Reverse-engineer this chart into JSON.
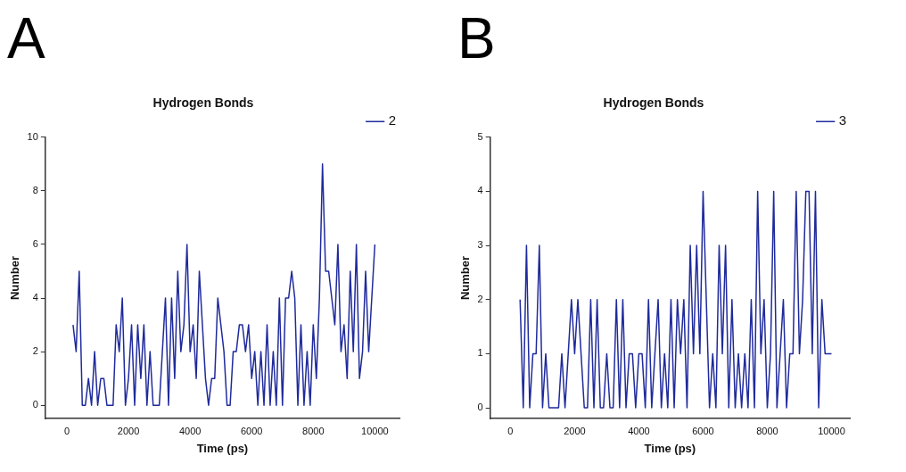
{
  "chart_data": [
    {
      "type": "line",
      "annotations": [
        "A"
      ],
      "title": "Hydrogen Bonds",
      "xlabel": "Time (ps)",
      "ylabel": "Number",
      "xlim": [
        -700,
        10800
      ],
      "xticks": [
        0,
        2000,
        4000,
        6000,
        8000,
        10000
      ],
      "ylim": [
        -0.5,
        10
      ],
      "yticks": [
        0,
        2,
        4,
        6,
        8,
        10
      ],
      "grid": false,
      "legend": "top right",
      "marker": "none",
      "x": [
        200,
        300,
        400,
        500,
        600,
        700,
        800,
        900,
        1000,
        1100,
        1200,
        1300,
        1400,
        1500,
        1600,
        1700,
        1800,
        1900,
        2000,
        2100,
        2200,
        2300,
        2400,
        2500,
        2600,
        2700,
        2800,
        2900,
        3000,
        3100,
        3200,
        3300,
        3400,
        3500,
        3600,
        3700,
        3800,
        3900,
        4000,
        4100,
        4200,
        4300,
        4400,
        4500,
        4600,
        4700,
        4800,
        4900,
        5000,
        5100,
        5200,
        5300,
        5400,
        5500,
        5600,
        5700,
        5800,
        5900,
        6000,
        6100,
        6200,
        6300,
        6400,
        6500,
        6600,
        6700,
        6800,
        6900,
        7000,
        7100,
        7200,
        7300,
        7400,
        7500,
        7600,
        7700,
        7800,
        7900,
        8000,
        8100,
        8200,
        8300,
        8400,
        8500,
        8600,
        8700,
        8800,
        8900,
        9000,
        9100,
        9200,
        9300,
        9400,
        9500,
        9600,
        9700,
        9800,
        9900,
        10000
      ],
      "series": [
        {
          "name": "2",
          "color": "#1f2a9c",
          "values": [
            3,
            2,
            5,
            0,
            0,
            1,
            0,
            2,
            0,
            1,
            1,
            0,
            0,
            0,
            3,
            2,
            4,
            0,
            1,
            3,
            0,
            3,
            1,
            3,
            0,
            2,
            0,
            0,
            0,
            2,
            4,
            0,
            4,
            1,
            5,
            2,
            3,
            6,
            2,
            3,
            1,
            5,
            3,
            1,
            0,
            1,
            1,
            4,
            3,
            2,
            0,
            0,
            2,
            2,
            3,
            3,
            2,
            3,
            1,
            2,
            0,
            2,
            0,
            3,
            0,
            2,
            0,
            4,
            0,
            4,
            4,
            5,
            4,
            0,
            3,
            0,
            2,
            0,
            3,
            1,
            4,
            9,
            5,
            5,
            4,
            3,
            6,
            2,
            3,
            1,
            5,
            2,
            6,
            1,
            2,
            5,
            2,
            4,
            6
          ]
        }
      ]
    },
    {
      "type": "line",
      "annotations": [
        "B"
      ],
      "title": "Hydrogen Bonds",
      "xlabel": "Time (ps)",
      "ylabel": "Number",
      "xlim": [
        -630,
        10570
      ],
      "xticks": [
        0,
        2000,
        4000,
        6000,
        8000,
        10000
      ],
      "ylim": [
        -0.2,
        5
      ],
      "yticks": [
        0,
        1,
        2,
        3,
        4,
        5
      ],
      "grid": false,
      "legend": "top right",
      "marker": "none",
      "x": [
        300,
        400,
        500,
        600,
        700,
        800,
        900,
        1000,
        1100,
        1200,
        1300,
        1400,
        1500,
        1600,
        1700,
        1800,
        1900,
        2000,
        2100,
        2200,
        2300,
        2400,
        2500,
        2600,
        2700,
        2800,
        2900,
        3000,
        3100,
        3200,
        3300,
        3400,
        3500,
        3600,
        3700,
        3800,
        3900,
        4000,
        4100,
        4200,
        4300,
        4400,
        4500,
        4600,
        4700,
        4800,
        4900,
        5000,
        5100,
        5200,
        5300,
        5400,
        5500,
        5600,
        5700,
        5800,
        5900,
        6000,
        6100,
        6200,
        6300,
        6400,
        6500,
        6600,
        6700,
        6800,
        6900,
        7000,
        7100,
        7200,
        7300,
        7400,
        7500,
        7600,
        7700,
        7800,
        7900,
        8000,
        8100,
        8200,
        8300,
        8400,
        8500,
        8600,
        8700,
        8800,
        8900,
        9000,
        9100,
        9200,
        9300,
        9400,
        9500,
        9600,
        9700,
        9800,
        9900,
        10000
      ],
      "series": [
        {
          "name": "3",
          "color": "#1f2a9c",
          "values": [
            2,
            0,
            3,
            0,
            1,
            1,
            3,
            0,
            1,
            0,
            0,
            0,
            0,
            1,
            0,
            1,
            2,
            1,
            2,
            1,
            0,
            0,
            2,
            0,
            2,
            0,
            0,
            1,
            0,
            0,
            2,
            0,
            2,
            0,
            1,
            1,
            0,
            1,
            1,
            0,
            2,
            0,
            1,
            2,
            0,
            1,
            0,
            2,
            0,
            2,
            1,
            2,
            0,
            3,
            1,
            3,
            1,
            4,
            2,
            0,
            1,
            0,
            3,
            1,
            3,
            0,
            2,
            0,
            1,
            0,
            1,
            0,
            2,
            0,
            4,
            1,
            2,
            0,
            1,
            4,
            0,
            1,
            2,
            0,
            1,
            1,
            4,
            1,
            2,
            4,
            4,
            1,
            4,
            0,
            2,
            1,
            1,
            1
          ]
        }
      ]
    }
  ]
}
